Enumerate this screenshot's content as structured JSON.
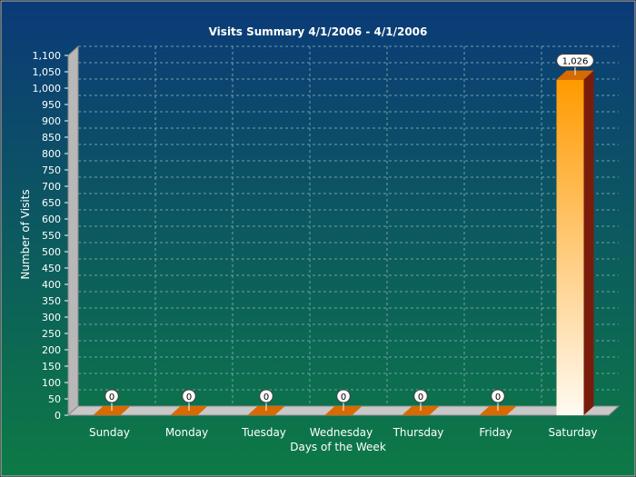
{
  "chart_data": {
    "type": "bar",
    "title": "Visits Summary 4/1/2006  - 4/1/2006",
    "xlabel": "Days of the Week",
    "ylabel": "Number of Visits",
    "categories": [
      "Sunday",
      "Monday",
      "Tuesday",
      "Wednesday",
      "Thursday",
      "Friday",
      "Saturday"
    ],
    "values": [
      0,
      0,
      0,
      0,
      0,
      0,
      1026
    ],
    "value_labels": [
      "0",
      "0",
      "0",
      "0",
      "0",
      "0",
      "1,026"
    ],
    "ylim": [
      0,
      1100
    ],
    "yticks": [
      0,
      50,
      100,
      150,
      200,
      250,
      300,
      350,
      400,
      450,
      500,
      550,
      600,
      650,
      700,
      750,
      800,
      850,
      900,
      950,
      1000,
      1050,
      1100
    ],
    "ytick_labels": [
      "0",
      "50",
      "100",
      "150",
      "200",
      "250",
      "300",
      "350",
      "400",
      "450",
      "500",
      "550",
      "600",
      "650",
      "700",
      "750",
      "800",
      "850",
      "900",
      "950",
      "1,000",
      "1,050",
      "1,100"
    ],
    "grid": true,
    "style": "3d-bar",
    "colors": {
      "background_top": "#0b3a78",
      "background_bottom": "#0d7a45",
      "bar_top": "#ff9a00",
      "bar_bottom": "#fffaf2",
      "bar_cap": "#d86a00",
      "bar_side": "#7a1c0c",
      "floor": "#c8c8c8",
      "grid": "#6fa0a8"
    }
  }
}
